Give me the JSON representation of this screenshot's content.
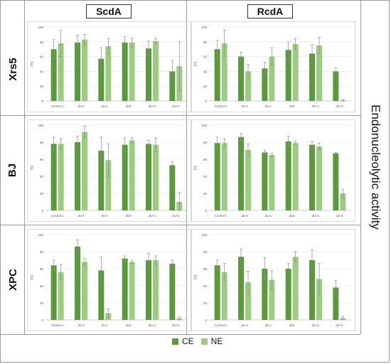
{
  "col_titles": [
    "ScdA",
    "RcdA"
  ],
  "row_titles": [
    "Xrs5",
    "BJ",
    "XPC"
  ],
  "side_title": "Endonucleolytic activity",
  "legend": [
    {
      "label": "CE",
      "color": "#5b9a3c"
    },
    {
      "label": "NE",
      "color": "#9ccc82"
    }
  ],
  "colors": {
    "CE": "#5b9a3c",
    "NE": "#9ccc82",
    "error_bar": "#8c8c8c"
  },
  "chart_data": [
    {
      "type": "bar",
      "row": "Xrs5",
      "column": "ScdA",
      "categories": [
        "Control 1",
        "dU-4",
        "dU-1",
        "dU0",
        "dU+1",
        "dU+4"
      ],
      "ylabel": "[%]",
      "ylim": [
        0,
        100
      ],
      "yticks": [
        0,
        20,
        40,
        60,
        80,
        100
      ],
      "series": [
        {
          "name": "CE",
          "values": [
            70,
            79,
            57,
            79,
            71,
            40
          ],
          "errors": [
            13,
            10,
            15,
            8,
            10,
            15
          ]
        },
        {
          "name": "NE",
          "values": [
            78,
            83,
            74,
            79,
            81,
            47
          ],
          "errors": [
            18,
            7,
            10,
            6,
            3,
            33
          ]
        }
      ]
    },
    {
      "type": "bar",
      "row": "Xrs5",
      "column": "RcdA",
      "categories": [
        "Control 1",
        "dU-4",
        "dU-1",
        "dU0",
        "dU+1",
        "dU+4"
      ],
      "ylabel": "[%]",
      "ylim": [
        0,
        100
      ],
      "yticks": [
        0,
        20,
        40,
        60,
        80,
        100
      ],
      "series": [
        {
          "name": "CE",
          "values": [
            70,
            60,
            44,
            69,
            64,
            40
          ],
          "errors": [
            12,
            6,
            8,
            10,
            12,
            5
          ]
        },
        {
          "name": "NE",
          "values": [
            78,
            40,
            60,
            77,
            75,
            1
          ],
          "errors": [
            18,
            9,
            12,
            7,
            11,
            1
          ]
        }
      ]
    },
    {
      "type": "bar",
      "row": "BJ",
      "column": "ScdA",
      "categories": [
        "Control 1",
        "dU-4",
        "dU-1",
        "dU0",
        "dU+1",
        "dU+4"
      ],
      "ylabel": "[%]",
      "ylim": [
        0,
        100
      ],
      "yticks": [
        0,
        20,
        40,
        60,
        80,
        100
      ],
      "series": [
        {
          "name": "CE",
          "values": [
            78,
            80,
            70,
            77,
            78,
            53
          ],
          "errors": [
            8,
            7,
            16,
            8,
            4,
            4
          ]
        },
        {
          "name": "NE",
          "values": [
            78,
            92,
            59,
            82,
            77,
            10
          ],
          "errors": [
            6,
            7,
            19,
            3,
            8,
            11
          ]
        }
      ]
    },
    {
      "type": "bar",
      "row": "BJ",
      "column": "RcdA",
      "categories": [
        "Control 1",
        "dU-4",
        "dU-1",
        "dU0",
        "dU+1",
        "dU+4"
      ],
      "ylabel": "[%]",
      "ylim": [
        0,
        100
      ],
      "yticks": [
        0,
        20,
        40,
        60,
        80,
        100
      ],
      "series": [
        {
          "name": "CE",
          "values": [
            79,
            86,
            68,
            81,
            77,
            67
          ],
          "errors": [
            7,
            4,
            2,
            6,
            4,
            1
          ]
        },
        {
          "name": "NE",
          "values": [
            79,
            71,
            65,
            79,
            75,
            20
          ],
          "errors": [
            5,
            7,
            2,
            2,
            4,
            5
          ]
        }
      ]
    },
    {
      "type": "bar",
      "row": "XPC",
      "column": "ScdA",
      "categories": [
        "Control 1",
        "dU-4",
        "dU-1",
        "dU0",
        "dU+1",
        "dU+4"
      ],
      "ylabel": "[%]",
      "ylim": [
        0,
        100
      ],
      "yticks": [
        0,
        20,
        40,
        60,
        80,
        100
      ],
      "series": [
        {
          "name": "CE",
          "values": [
            64,
            86,
            58,
            72,
            70,
            66
          ],
          "errors": [
            6,
            8,
            16,
            3,
            8,
            4
          ]
        },
        {
          "name": "NE",
          "values": [
            56,
            68,
            8,
            68,
            70,
            2
          ],
          "errors": [
            9,
            4,
            5,
            2,
            5,
            2
          ]
        }
      ]
    },
    {
      "type": "bar",
      "row": "XPC",
      "column": "RcdA",
      "categories": [
        "Control 1",
        "dU-4",
        "dU-1",
        "dU0",
        "dU+1",
        "dU+4"
      ],
      "ylabel": "[%]",
      "ylim": [
        0,
        100
      ],
      "yticks": [
        0,
        20,
        40,
        60,
        80,
        100
      ],
      "series": [
        {
          "name": "CE",
          "values": [
            64,
            74,
            60,
            60,
            70,
            38
          ],
          "errors": [
            6,
            9,
            13,
            6,
            12,
            8
          ]
        },
        {
          "name": "NE",
          "values": [
            56,
            44,
            47,
            74,
            48,
            2
          ],
          "errors": [
            10,
            13,
            11,
            6,
            18,
            2
          ]
        }
      ]
    }
  ]
}
